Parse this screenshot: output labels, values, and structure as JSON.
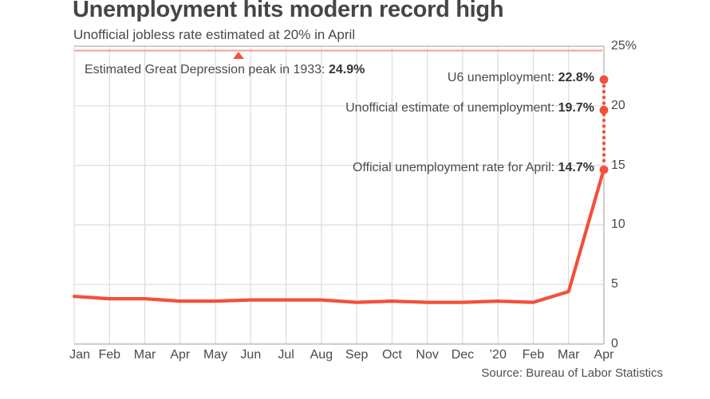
{
  "chart_data": {
    "type": "line",
    "title": "Unemployment hits modern record high",
    "subtitle": "Unofficial jobless rate estimated at 20% in April",
    "source": "Source: Bureau of Labor Statistics",
    "x": [
      "Jan",
      "Feb",
      "Mar",
      "Apr",
      "May",
      "Jun",
      "Jul",
      "Aug",
      "Sep",
      "Oct",
      "Nov",
      "Dec",
      "’20",
      "Feb",
      "Mar",
      "Apr"
    ],
    "series": [
      {
        "name": "Official unemployment rate",
        "values": [
          4.0,
          3.8,
          3.8,
          3.6,
          3.6,
          3.7,
          3.7,
          3.7,
          3.5,
          3.6,
          3.5,
          3.5,
          3.6,
          3.5,
          4.4,
          14.7
        ]
      }
    ],
    "ylim": [
      0,
      25
    ],
    "yticks": [
      {
        "value": 25,
        "label": "25%"
      },
      {
        "value": 20,
        "label": "20"
      },
      {
        "value": 15,
        "label": "15"
      },
      {
        "value": 10,
        "label": "10"
      },
      {
        "value": 5,
        "label": "5"
      },
      {
        "value": 0,
        "label": "0"
      }
    ],
    "grid": "on",
    "legend": "none",
    "reference_line": {
      "text": "Estimated Great Depression peak in 1933: ",
      "value_label": "24.9%",
      "value": 24.9
    },
    "markers": [
      {
        "text": "U6 unemployment: ",
        "value_label": "22.8%",
        "value": 22.8
      },
      {
        "text": "Unofficial estimate of unemployment: ",
        "value_label": "19.7%",
        "value": 19.7
      },
      {
        "text": "Official unemployment rate for April: ",
        "value_label": "14.7%",
        "value": 14.7
      }
    ],
    "colors": {
      "line": "#f3503a",
      "reference_line": "#f6a89c",
      "grid": "#dcdcdc",
      "border": "#bdbdbd",
      "axis_text": "#4a4a4a",
      "title_text": "#46464a",
      "value_text": "#333333"
    }
  }
}
